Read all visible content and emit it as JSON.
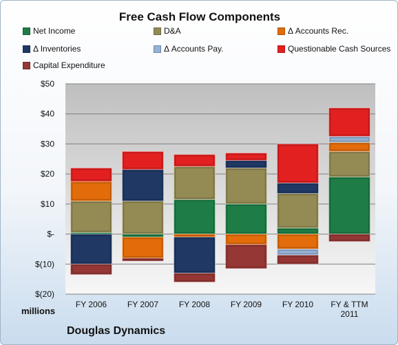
{
  "chart_data": {
    "type": "bar",
    "stacked": true,
    "title": "Free Cash Flow Components",
    "units_label": "millions",
    "source_label": "Douglas Dynamics",
    "categories": [
      [
        "FY 2006"
      ],
      [
        "FY 2007"
      ],
      [
        "FY 2008"
      ],
      [
        "FY 2009"
      ],
      [
        "FY 2010"
      ],
      [
        "FY & TTM",
        "2011"
      ]
    ],
    "y_tick_labels": [
      "$(20)",
      "$(10)",
      "$-",
      "$10",
      "$20",
      "$30",
      "$40",
      "$50"
    ],
    "ylim": [
      -20,
      50
    ],
    "y_ticks": [
      -20,
      -10,
      0,
      10,
      20,
      30,
      40,
      50
    ],
    "grid": true,
    "legend_position": "top",
    "series": [
      {
        "name": "Net Income",
        "color": "#1e7d46",
        "values": [
          0.5,
          -1,
          11.5,
          10,
          2,
          19
        ]
      },
      {
        "name": "D&A",
        "color": "#948a54",
        "values": [
          10.5,
          11,
          11,
          12,
          11.5,
          8.5
        ]
      },
      {
        "name": "Δ Accounts Rec.",
        "color": "#e36c0a",
        "values": [
          6.5,
          -7,
          -1,
          -3.5,
          -5,
          3
        ]
      },
      {
        "name": "Δ Inventories",
        "color": "#1f3864",
        "values": [
          -10,
          10.5,
          -12,
          2.5,
          3.5,
          0
        ]
      },
      {
        "name": "Δ Accounts Pay.",
        "color": "#95b3d7",
        "values": [
          0,
          0,
          0,
          0,
          -2,
          2
        ]
      },
      {
        "name": "Questionable Cash Sources",
        "color": "#e32020",
        "values": [
          4.5,
          6,
          4,
          2.5,
          13,
          9.5
        ]
      },
      {
        "name": "Capital Expenditure",
        "color": "#953735",
        "values": [
          -3.5,
          -1,
          -3,
          -8,
          -3,
          -2.5
        ]
      }
    ]
  }
}
